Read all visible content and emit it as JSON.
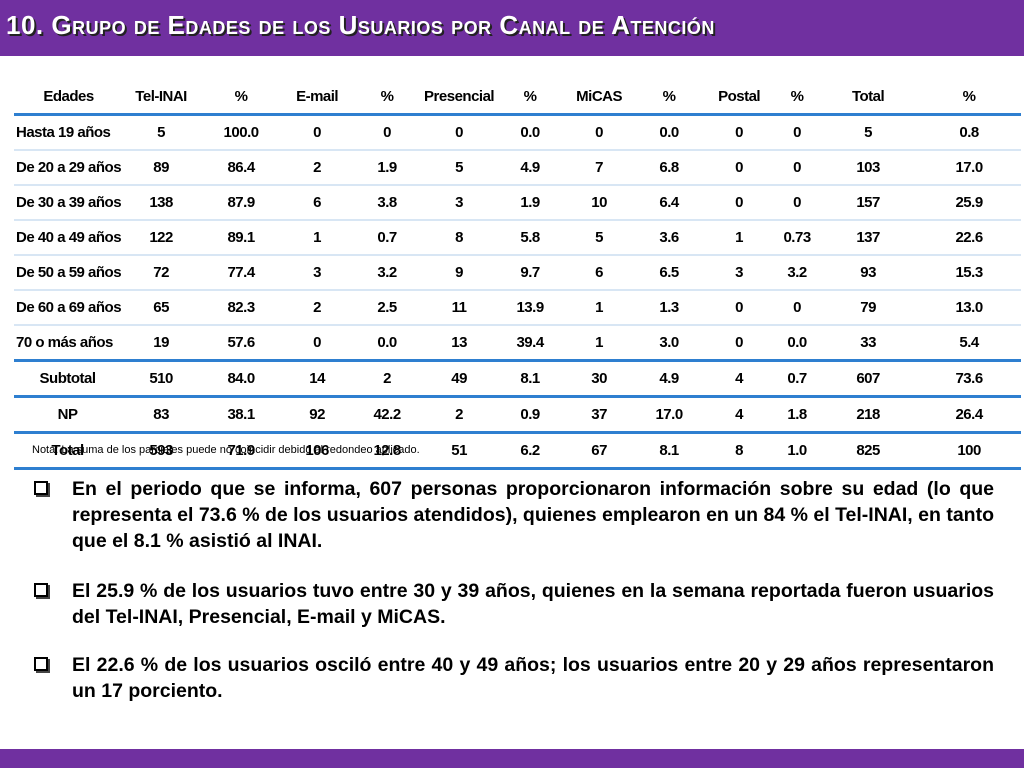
{
  "title": "10. Grupo de  Edades de los Usuarios por Canal de Atención",
  "table": {
    "headers": [
      "Edades",
      "Tel-INAI",
      "%",
      "E-mail",
      "%",
      "Presencial",
      "%",
      "MiCAS",
      "%",
      "Postal",
      "%",
      "Total",
      "%"
    ],
    "rows": [
      [
        "Hasta 19 años",
        "5",
        "100.0",
        "0",
        "0",
        "0",
        "0.0",
        "0",
        "0.0",
        "0",
        "0",
        "5",
        "0.8"
      ],
      [
        "De 20 a 29 años",
        "89",
        "86.4",
        "2",
        "1.9",
        "5",
        "4.9",
        "7",
        "6.8",
        "0",
        "0",
        "103",
        "17.0"
      ],
      [
        "De 30 a 39 años",
        "138",
        "87.9",
        "6",
        "3.8",
        "3",
        "1.9",
        "10",
        "6.4",
        "0",
        "0",
        "157",
        "25.9"
      ],
      [
        "De 40 a 49 años",
        "122",
        "89.1",
        "1",
        "0.7",
        "8",
        "5.8",
        "5",
        "3.6",
        "1",
        "0.73",
        "137",
        "22.6"
      ],
      [
        "De 50 a 59 años",
        "72",
        "77.4",
        "3",
        "3.2",
        "9",
        "9.7",
        "6",
        "6.5",
        "3",
        "3.2",
        "93",
        "15.3"
      ],
      [
        "De 60 a 69 años",
        "65",
        "82.3",
        "2",
        "2.5",
        "11",
        "13.9",
        "1",
        "1.3",
        "0",
        "0",
        "79",
        "13.0"
      ],
      [
        "70 o más años",
        "19",
        "57.6",
        "0",
        "0.0",
        "13",
        "39.4",
        "1",
        "3.0",
        "0",
        "0.0",
        "33",
        "5.4"
      ]
    ],
    "subtotal": [
      "Subtotal",
      "510",
      "84.0",
      "14",
      "2",
      "49",
      "8.1",
      "30",
      "4.9",
      "4",
      "0.7",
      "607",
      "73.6"
    ],
    "np": [
      "NP",
      "83",
      "38.1",
      "92",
      "42.2",
      "2",
      "0.9",
      "37",
      "17.0",
      "4",
      "1.8",
      "218",
      "26.4"
    ],
    "total": [
      "Total",
      "593",
      "71.9",
      "106",
      "12.8",
      "51",
      "6.2",
      "67",
      "8.1",
      "8",
      "1.0",
      "825",
      "100"
    ]
  },
  "note": "Nota: La suma de los parciales puede no coincidir debido al redondeo aplicado.",
  "bullets": [
    "En el periodo que se informa, 607 personas proporcionaron información sobre su edad (lo que representa el 73.6 % de los usuarios atendidos), quienes emplearon en un 84 % el Tel-INAI, en tanto que el 8.1 % asistió al INAI.",
    "El 25.9 % de los usuarios tuvo entre 30 y 39 años, quienes en la semana reportada fueron usuarios del  Tel-INAI, Presencial, E-mail y MiCAS.",
    "El 22.6 % de los usuarios osciló entre 40 y 49 años; los usuarios entre 20 y 29 años representaron un 17 porciento."
  ],
  "colors": {
    "header_bar": "#7030a0",
    "table_rule": "#2e7fd0",
    "row_rule": "#d8e6f4"
  }
}
